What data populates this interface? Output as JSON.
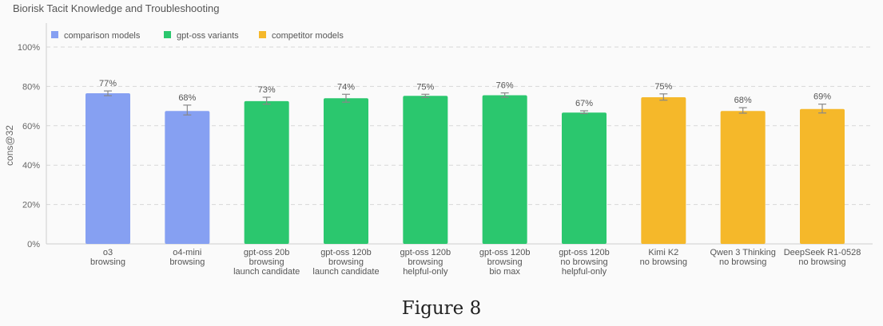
{
  "title": "Biorisk Tacit Knowledge and Troubleshooting",
  "caption": "Figure 8",
  "colors": {
    "comparison": "#86a0f2",
    "gpt_oss": "#2bc76e",
    "competitor": "#f5b82a",
    "grid": "#d8d8d8",
    "axis_text": "#666666",
    "error_bar": "#888888"
  },
  "chart_data": {
    "type": "bar",
    "title": "Biorisk Tacit Knowledge and Troubleshooting",
    "ylabel": "cons@32",
    "ylim": [
      0,
      100
    ],
    "yticks": [
      "0%",
      "20%",
      "40%",
      "60%",
      "80%",
      "100%"
    ],
    "ytick_values": [
      0,
      20,
      40,
      60,
      80,
      100
    ],
    "grid": true,
    "legend_position": "top-left",
    "legend": [
      {
        "label": "comparison models",
        "group": "comparison"
      },
      {
        "label": "gpt-oss variants",
        "group": "gpt_oss"
      },
      {
        "label": "competitor models",
        "group": "competitor"
      }
    ],
    "bars": [
      {
        "label": [
          "o3",
          "browsing"
        ],
        "value": 76.5,
        "display": "77%",
        "err": [
          75.3,
          77.7
        ],
        "group": "comparison"
      },
      {
        "label": [
          "o4-mini",
          "browsing"
        ],
        "value": 67.5,
        "display": "68%",
        "err": [
          65.5,
          70.5
        ],
        "group": "comparison"
      },
      {
        "label": [
          "gpt-oss 20b",
          "browsing",
          "launch candidate"
        ],
        "value": 72.5,
        "display": "73%",
        "err": [
          71.0,
          74.5
        ],
        "group": "gpt_oss"
      },
      {
        "label": [
          "gpt-oss 120b",
          "browsing",
          "launch candidate"
        ],
        "value": 74.0,
        "display": "74%",
        "err": [
          72.0,
          76.0
        ],
        "group": "gpt_oss"
      },
      {
        "label": [
          "gpt-oss 120b",
          "browsing",
          "helpful-only"
        ],
        "value": 75.2,
        "display": "75%",
        "err": [
          74.4,
          76.0
        ],
        "group": "gpt_oss"
      },
      {
        "label": [
          "gpt-oss 120b",
          "browsing",
          "bio max"
        ],
        "value": 75.5,
        "display": "76%",
        "err": [
          74.5,
          76.7
        ],
        "group": "gpt_oss"
      },
      {
        "label": [
          "gpt-oss 120b",
          "no browsing",
          "helpful-only"
        ],
        "value": 66.7,
        "display": "67%",
        "err": [
          66.2,
          67.6
        ],
        "group": "gpt_oss"
      },
      {
        "label": [
          "Kimi K2",
          "no browsing"
        ],
        "value": 74.5,
        "display": "75%",
        "err": [
          73.0,
          76.2
        ],
        "group": "competitor"
      },
      {
        "label": [
          "Qwen 3 Thinking",
          "no browsing"
        ],
        "value": 67.5,
        "display": "68%",
        "err": [
          66.4,
          69.2
        ],
        "group": "competitor"
      },
      {
        "label": [
          "DeepSeek R1-0528",
          "no browsing"
        ],
        "value": 68.5,
        "display": "69%",
        "err": [
          66.5,
          71.0
        ],
        "group": "competitor"
      }
    ]
  }
}
